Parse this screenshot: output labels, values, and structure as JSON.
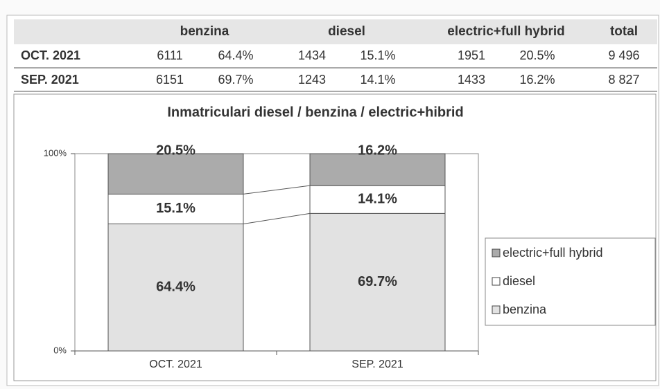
{
  "table": {
    "header": [
      "benzina",
      "diesel",
      "electric+full hybrid",
      "total"
    ],
    "rows": [
      [
        "OCT. 2021",
        "6111",
        "64.4%",
        "1434",
        "15.1%",
        "1951",
        "20.5%",
        "9 496"
      ],
      [
        "SEP. 2021",
        "6151",
        "69.7%",
        "1243",
        "14.1%",
        "1433",
        "16.2%",
        "8 827"
      ]
    ]
  },
  "chart_data": {
    "type": "stacked_bar",
    "title": "Inmatriculari diesel / benzina / electric+hibrid",
    "categories": [
      "OCT. 2021",
      "SEP. 2021"
    ],
    "series": [
      {
        "name": "benzina",
        "color": "#e2e2e2",
        "values": [
          64.4,
          69.7
        ],
        "value_labels": [
          "64.4%",
          "69.7%"
        ]
      },
      {
        "name": "diesel",
        "color": "#ffffff",
        "values": [
          15.1,
          14.1
        ],
        "value_labels": [
          "15.1%",
          "14.1%"
        ]
      },
      {
        "name": "electric+full hybrid",
        "color": "#ababab",
        "values": [
          20.5,
          16.2
        ],
        "value_labels": [
          "20.5%",
          "16.2%"
        ]
      }
    ],
    "ylim": [
      0,
      100
    ],
    "yticks": [
      {
        "value": 0,
        "label": "0%"
      },
      {
        "value": 100,
        "label": "100%"
      }
    ],
    "legend": "right"
  }
}
